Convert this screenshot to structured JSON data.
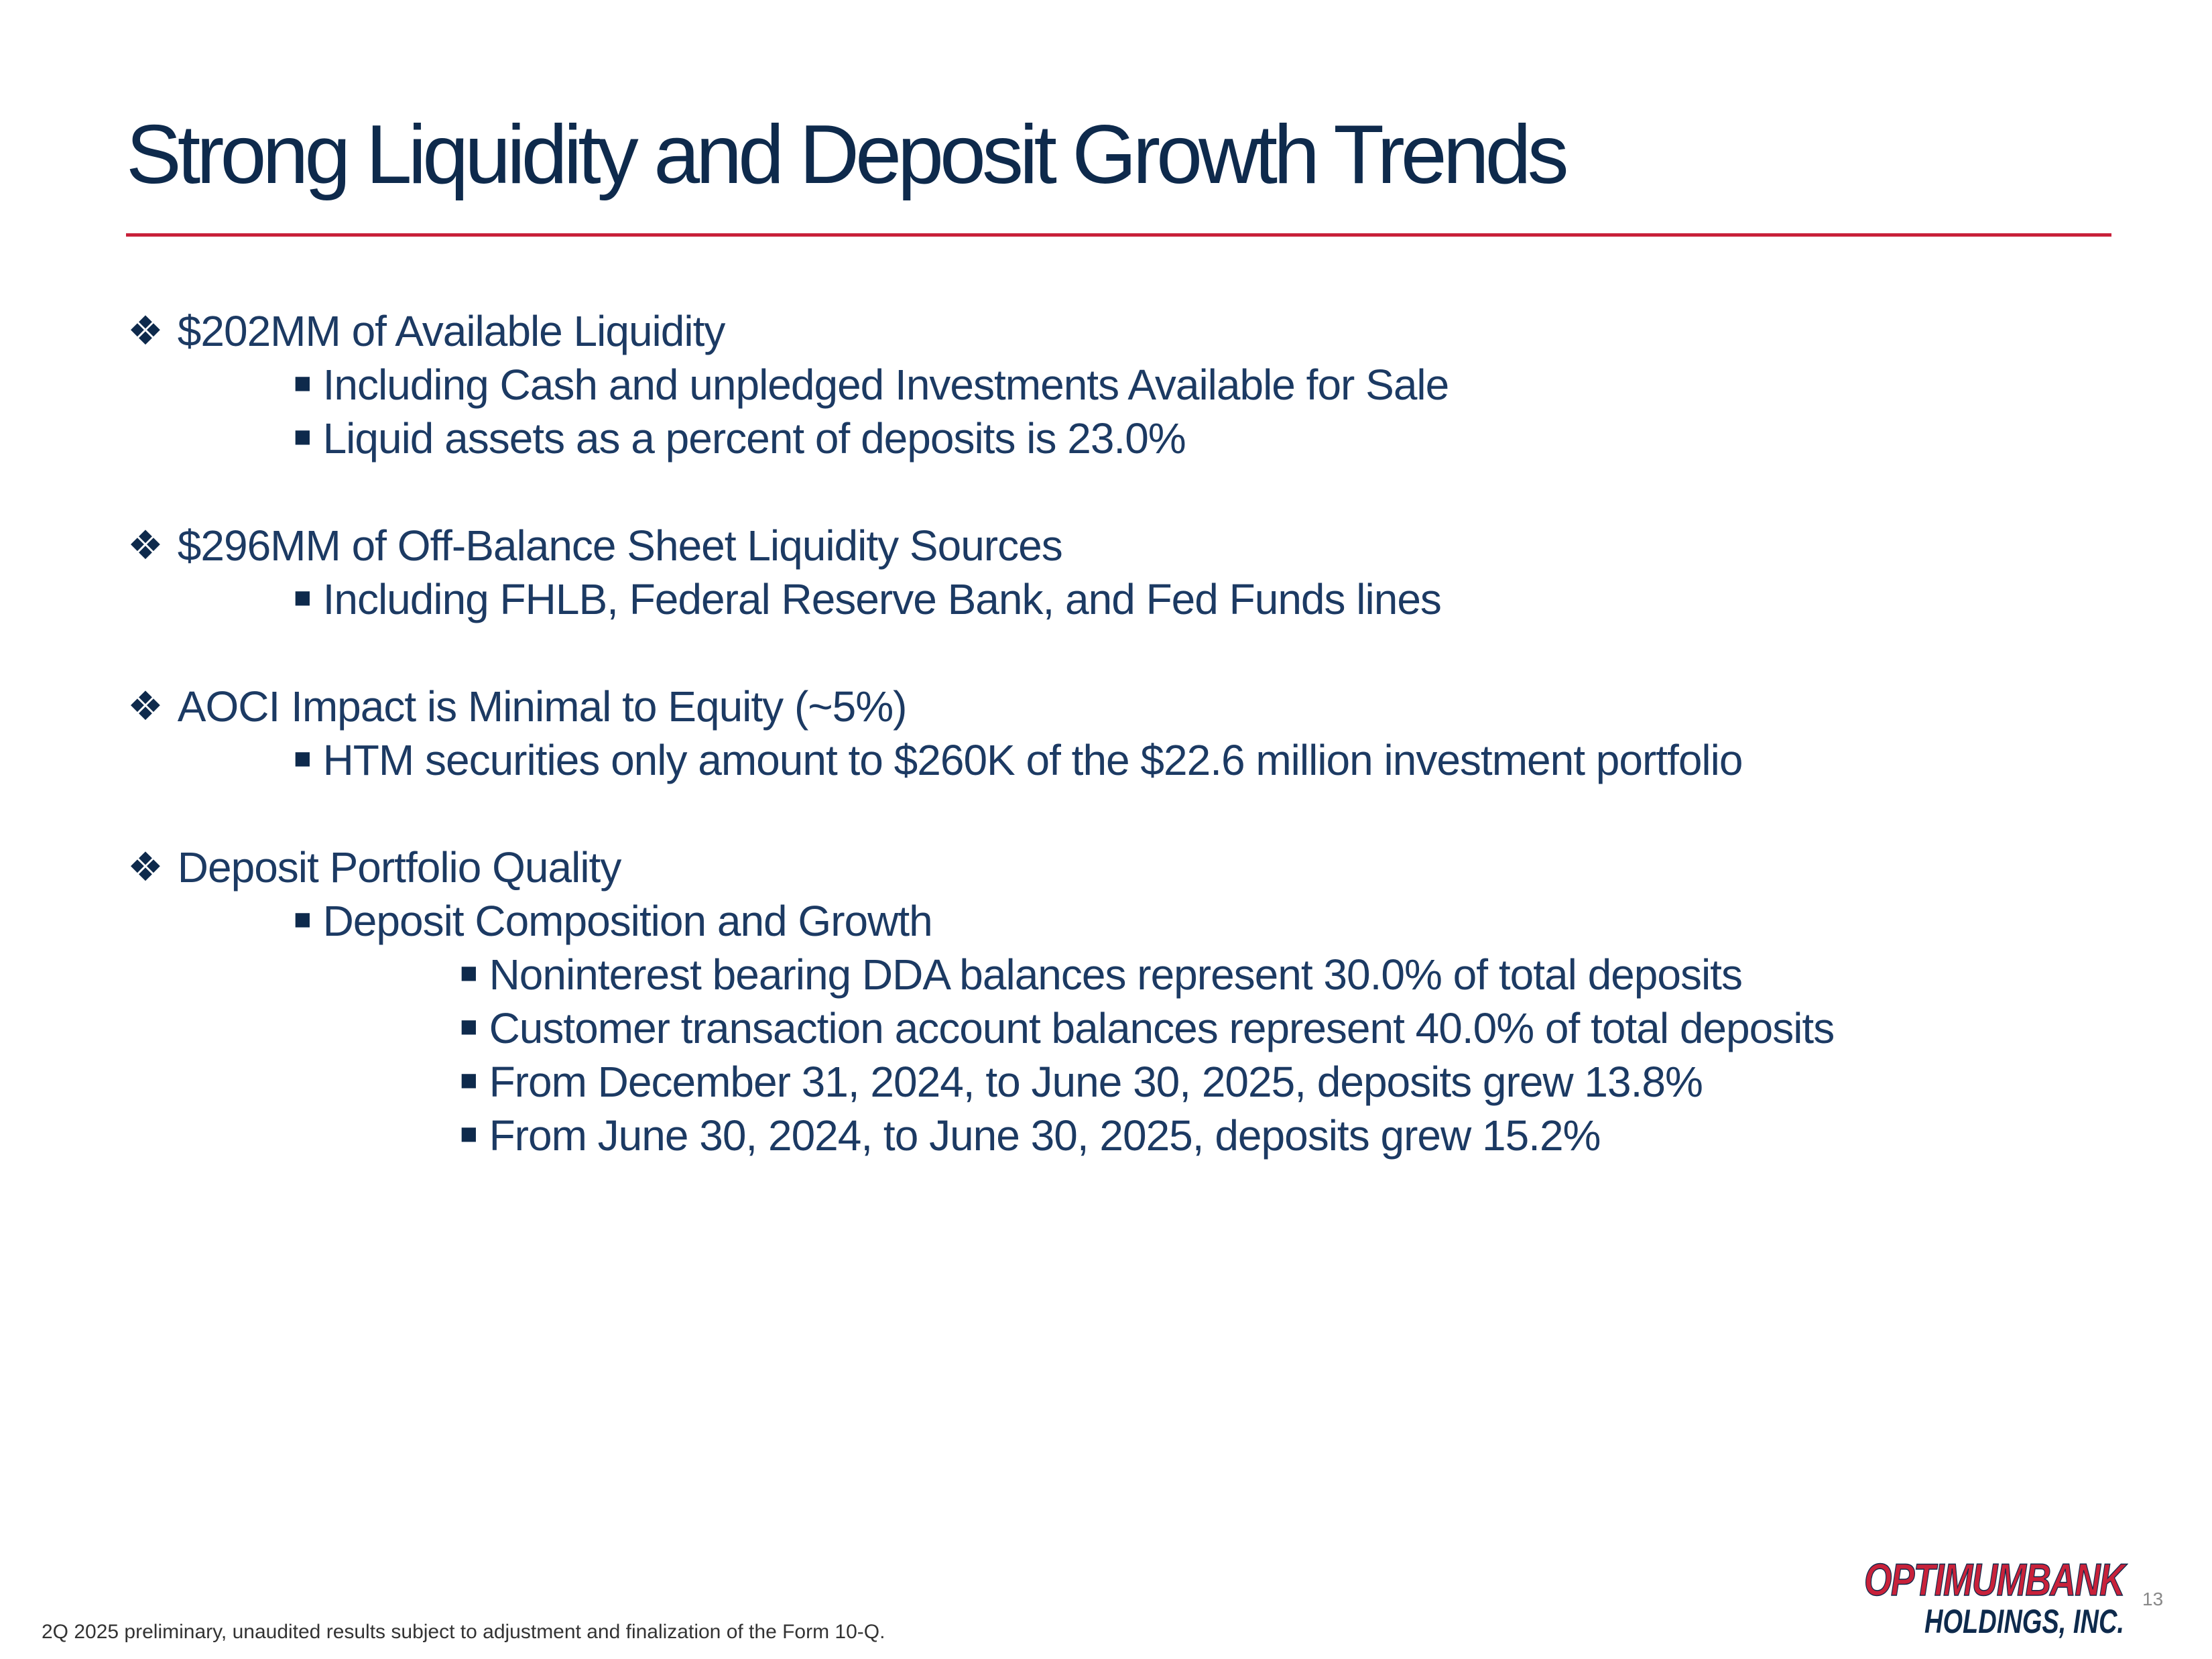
{
  "title": "Strong Liquidity and Deposit Growth Trends",
  "bullets": [
    {
      "level": 1,
      "text": "$202MM of Available Liquidity"
    },
    {
      "level": 2,
      "text": "Including Cash and unpledged Investments Available for Sale"
    },
    {
      "level": 2,
      "text": "Liquid assets as a percent of deposits is 23.0%"
    },
    {
      "level": 1,
      "text": "$296MM of Off-Balance Sheet Liquidity Sources"
    },
    {
      "level": 2,
      "text": "Including FHLB, Federal Reserve Bank, and Fed Funds lines"
    },
    {
      "level": 1,
      "text": "AOCI Impact is Minimal to Equity (~5%)"
    },
    {
      "level": 2,
      "text": "HTM securities only amount to $260K of the $22.6 million investment portfolio"
    },
    {
      "level": 1,
      "text": "Deposit Portfolio Quality"
    },
    {
      "level": 2,
      "text": "Deposit Composition and Growth"
    },
    {
      "level": 3,
      "text": "Noninterest bearing DDA balances represent 30.0% of total deposits"
    },
    {
      "level": 3,
      "text": "Customer transaction account balances represent 40.0% of total deposits"
    },
    {
      "level": 3,
      "text": "From December 31, 2024, to June 30, 2025, deposits grew 13.8%"
    },
    {
      "level": 3,
      "text": "From June 30, 2024, to June 30, 2025, deposits grew 15.2%"
    }
  ],
  "footnote": "2Q 2025 preliminary, unaudited results subject to adjustment and finalization of the Form 10-Q.",
  "page_number": "13",
  "logo": {
    "line1": "OPTIMUMBANK",
    "line2": "HOLDINGS, INC.",
    "color_primary": "#c8213a",
    "color_secondary": "#0e2a4c"
  },
  "colors": {
    "title": "#0e2a4c",
    "text": "#1c3a63",
    "rule": "#c8213a"
  }
}
